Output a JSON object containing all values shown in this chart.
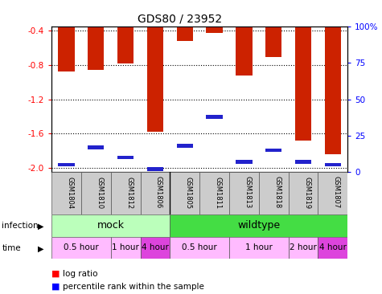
{
  "title": "GDS80 / 23952",
  "samples": [
    "GSM1804",
    "GSM1810",
    "GSM1812",
    "GSM1806",
    "GSM1805",
    "GSM1811",
    "GSM1813",
    "GSM1818",
    "GSM1819",
    "GSM1807"
  ],
  "log_ratio": [
    -0.88,
    -0.86,
    -0.78,
    -1.58,
    -0.52,
    -0.43,
    -0.92,
    -0.71,
    -1.68,
    -1.84
  ],
  "percentile_rank": [
    5,
    17,
    10,
    2,
    18,
    38,
    7,
    15,
    7,
    5
  ],
  "ylim_left": [
    -2.05,
    -0.35
  ],
  "ylim_right": [
    0,
    100
  ],
  "yticks_left": [
    -2.0,
    -1.6,
    -1.2,
    -0.8,
    -0.4
  ],
  "yticks_right": [
    0,
    25,
    50,
    75,
    100
  ],
  "bar_color": "#cc2200",
  "percentile_color": "#2222cc",
  "bar_width": 0.55,
  "infection_groups": [
    {
      "label": "mock",
      "start": 0,
      "end": 4,
      "color": "#bbffbb"
    },
    {
      "label": "wildtype",
      "start": 4,
      "end": 10,
      "color": "#44dd44"
    }
  ],
  "time_groups": [
    {
      "label": "0.5 hour",
      "start": 0,
      "end": 2,
      "color": "#ffbbff"
    },
    {
      "label": "1 hour",
      "start": 2,
      "end": 3,
      "color": "#ffbbff"
    },
    {
      "label": "4 hour",
      "start": 3,
      "end": 4,
      "color": "#dd44dd"
    },
    {
      "label": "0.5 hour",
      "start": 4,
      "end": 6,
      "color": "#ffbbff"
    },
    {
      "label": "1 hour",
      "start": 6,
      "end": 8,
      "color": "#ffbbff"
    },
    {
      "label": "2 hour",
      "start": 8,
      "end": 9,
      "color": "#ffbbff"
    },
    {
      "label": "4 hour",
      "start": 9,
      "end": 10,
      "color": "#dd44dd"
    }
  ],
  "tick_fontsize": 7.5,
  "title_fontsize": 10,
  "grid_color": "black",
  "grid_style": "dotted",
  "label_row_color": "#cccccc",
  "infection_divider": 3.5
}
